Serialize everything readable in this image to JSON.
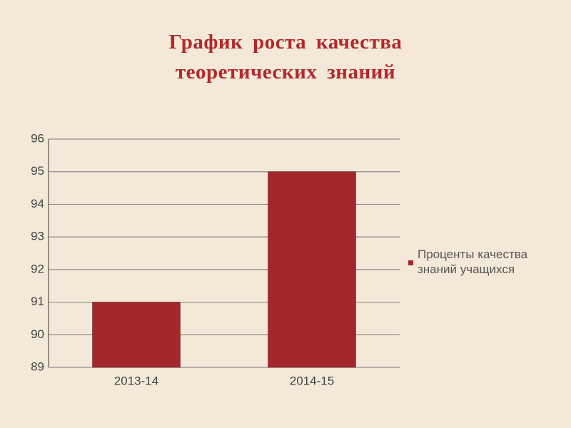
{
  "chart_data": {
    "type": "bar",
    "title": "График роста качества теоретических знаний",
    "categories": [
      "2013-14",
      "2014-15"
    ],
    "series": [
      {
        "name": "Проценты качества знаний учащихся",
        "color": "#a3262a",
        "values": [
          91,
          95
        ]
      }
    ],
    "ylim": [
      89,
      96
    ],
    "yticks": [
      89,
      90,
      91,
      92,
      93,
      94,
      95,
      96
    ],
    "grid": true,
    "legend": "right"
  }
}
